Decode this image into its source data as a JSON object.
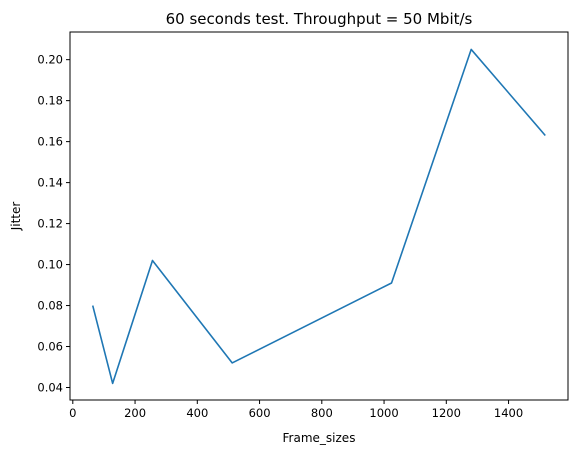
{
  "chart_data": {
    "type": "line",
    "title": "60 seconds test. Throughput = 50 Mbit/s",
    "xlabel": "Frame_sizes",
    "ylabel": "Jitter",
    "x": [
      64,
      128,
      256,
      512,
      1024,
      1280,
      1518
    ],
    "series": [
      {
        "values": [
          0.08,
          0.042,
          0.102,
          0.052,
          0.091,
          0.205,
          0.163
        ]
      }
    ],
    "xlim": [
      -9,
      1591
    ],
    "ylim": [
      0.0339,
      0.2135
    ],
    "xticks": [
      0,
      200,
      400,
      600,
      800,
      1000,
      1200,
      1400
    ],
    "yticks": [
      0.04,
      0.06,
      0.08,
      0.1,
      0.12,
      0.14,
      0.16,
      0.18,
      0.2
    ],
    "xtick_labels": [
      "0",
      "200",
      "400",
      "600",
      "800",
      "1000",
      "1200",
      "1400"
    ],
    "ytick_labels": [
      "0.04",
      "0.06",
      "0.08",
      "0.10",
      "0.12",
      "0.14",
      "0.16",
      "0.18",
      "0.20"
    ],
    "grid": false,
    "line_color": "#1f77b4"
  }
}
